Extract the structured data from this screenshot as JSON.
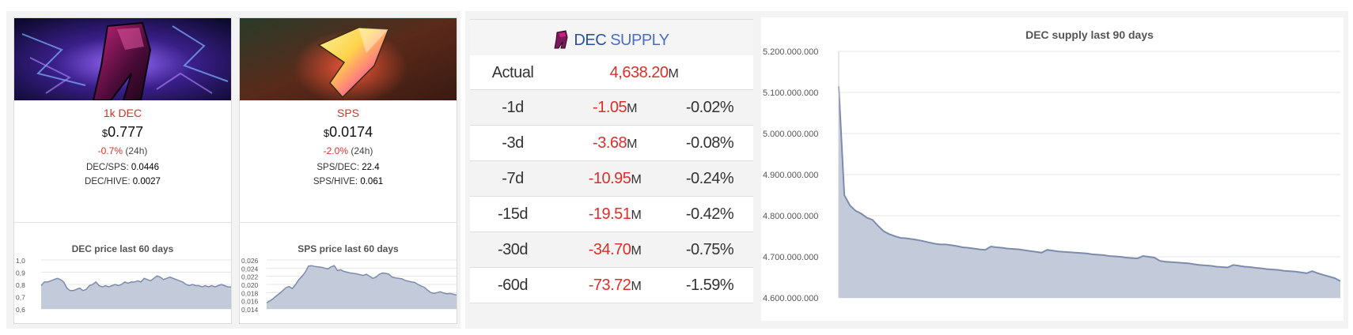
{
  "cards": [
    {
      "token": "1k DEC",
      "currency": "$",
      "price": "0.777",
      "change": "-0.7%",
      "change_period": "(24h)",
      "ratio1_label": "DEC/SPS:",
      "ratio1_value": "0.0446",
      "ratio2_label": "DEC/HIVE:",
      "ratio2_value": "0.0027",
      "chart_title": "DEC price last 60 days"
    },
    {
      "token": "SPS",
      "currency": "$",
      "price": "0.0174",
      "change": "-2.0%",
      "change_period": "(24h)",
      "ratio1_label": "SPS/DEC:",
      "ratio1_value": "22.4",
      "ratio2_label": "SPS/HIVE:",
      "ratio2_value": "0.061",
      "chart_title": "SPS price last 60 days"
    }
  ],
  "supply_table": {
    "title_dec": "DEC",
    "title_supply": "SUPPLY",
    "actual_label": "Actual",
    "actual_value": "4,638.20",
    "unit": "M",
    "rows": [
      {
        "period": "-1d",
        "value": "-1.05",
        "pct": "-0.02%"
      },
      {
        "period": "-3d",
        "value": "-3.68",
        "pct": "-0.08%"
      },
      {
        "period": "-7d",
        "value": "-10.95",
        "pct": "-0.24%"
      },
      {
        "period": "-15d",
        "value": "-19.51",
        "pct": "-0.42%"
      },
      {
        "period": "-30d",
        "value": "-34.70",
        "pct": "-0.75%"
      },
      {
        "period": "-60d",
        "value": "-73.72",
        "pct": "-1.59%"
      }
    ]
  },
  "colors": {
    "negative": "#d9302c",
    "area_fill": "#c3cbdb",
    "area_line": "#7d8cad",
    "brand_blue": "#2b4fa3"
  },
  "chart_data": [
    {
      "type": "area",
      "title": "DEC price last 60 days",
      "ylim": [
        0.6,
        1.0
      ],
      "y_ticks": [
        "1,0",
        "0,9",
        "0,8",
        "0,7",
        "0,6"
      ],
      "y_tick_values": [
        1.0,
        0.9,
        0.8,
        0.7,
        0.6
      ],
      "values": [
        0.79,
        0.82,
        0.82,
        0.83,
        0.84,
        0.85,
        0.84,
        0.82,
        0.77,
        0.75,
        0.75,
        0.76,
        0.77,
        0.75,
        0.76,
        0.79,
        0.8,
        0.82,
        0.79,
        0.78,
        0.79,
        0.78,
        0.79,
        0.8,
        0.79,
        0.8,
        0.82,
        0.81,
        0.82,
        0.82,
        0.83,
        0.82,
        0.85,
        0.84,
        0.83,
        0.85,
        0.87,
        0.86,
        0.84,
        0.85,
        0.86,
        0.85,
        0.84,
        0.83,
        0.82,
        0.8,
        0.79,
        0.8,
        0.79,
        0.79,
        0.78,
        0.79,
        0.78,
        0.79,
        0.78,
        0.79,
        0.8,
        0.79,
        0.78,
        0.78
      ]
    },
    {
      "type": "area",
      "title": "SPS price last 60 days",
      "ylim": [
        0.014,
        0.026
      ],
      "y_ticks": [
        "0,026",
        "0,024",
        "0,022",
        "0,020",
        "0,018",
        "0,016",
        "0,014"
      ],
      "y_tick_values": [
        0.026,
        0.024,
        0.022,
        0.02,
        0.018,
        0.016,
        0.014
      ],
      "values": [
        0.0155,
        0.016,
        0.0165,
        0.0172,
        0.0178,
        0.0185,
        0.0192,
        0.0195,
        0.019,
        0.02,
        0.0212,
        0.022,
        0.023,
        0.0245,
        0.0246,
        0.0244,
        0.0243,
        0.0242,
        0.024,
        0.0238,
        0.0243,
        0.0246,
        0.0234,
        0.0236,
        0.0232,
        0.023,
        0.0228,
        0.0227,
        0.0226,
        0.0224,
        0.0222,
        0.0225,
        0.022,
        0.0215,
        0.0218,
        0.0225,
        0.0228,
        0.0227,
        0.0225,
        0.0218,
        0.0216,
        0.0215,
        0.0214,
        0.021,
        0.0208,
        0.0206,
        0.0205,
        0.02,
        0.0196,
        0.0193,
        0.0186,
        0.018,
        0.0178,
        0.018,
        0.0182,
        0.0179,
        0.0177,
        0.0178,
        0.0176,
        0.0174
      ]
    },
    {
      "type": "area",
      "title": "DEC supply last 90 days",
      "ylim": [
        4600000000,
        5200000000
      ],
      "y_ticks": [
        "5.200.000.000",
        "5.100.000.000",
        "5.000.000.000",
        "4.900.000.000",
        "4.800.000.000",
        "4.700.000.000",
        "4.600.000.000"
      ],
      "y_tick_values": [
        5200000000,
        5100000000,
        5000000000,
        4900000000,
        4800000000,
        4700000000,
        4600000000
      ],
      "values": [
        5115,
        4850,
        4825,
        4812,
        4805,
        4795,
        4790,
        4775,
        4762,
        4755,
        4750,
        4746,
        4745,
        4743,
        4741,
        4738,
        4735,
        4732,
        4730,
        4730,
        4728,
        4726,
        4723,
        4722,
        4720,
        4718,
        4717,
        4725,
        4723,
        4722,
        4720,
        4719,
        4718,
        4716,
        4714,
        4712,
        4710,
        4717,
        4715,
        4713,
        4712,
        4711,
        4710,
        4709,
        4708,
        4706,
        4705,
        4704,
        4702,
        4701,
        4700,
        4698,
        4697,
        4696,
        4702,
        4700,
        4698,
        4690,
        4688,
        4687,
        4686,
        4685,
        4684,
        4682,
        4680,
        4679,
        4678,
        4676,
        4675,
        4674,
        4680,
        4678,
        4676,
        4675,
        4673,
        4672,
        4670,
        4669,
        4668,
        4666,
        4665,
        4664,
        4662,
        4660,
        4665,
        4660,
        4656,
        4652,
        4648,
        4641
      ]
    }
  ]
}
